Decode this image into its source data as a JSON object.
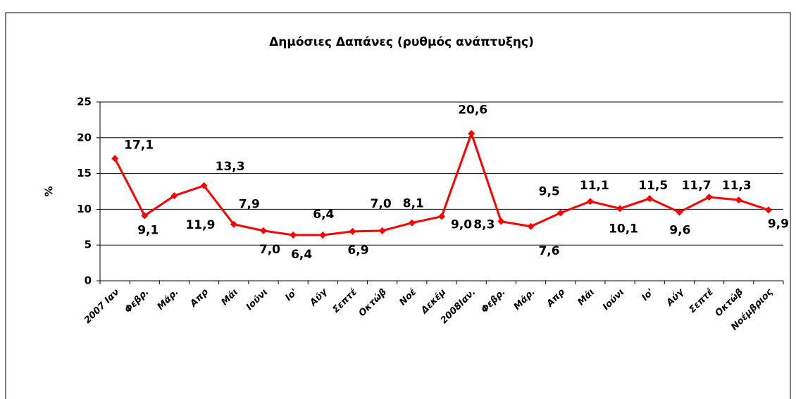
{
  "chart_data": {
    "type": "line",
    "title": "Δημόσιες Δαπάνες (ρυθμός ανάπτυξης)",
    "y_label": "%",
    "categories": [
      "2007 Ιαν",
      "Φεβρ.",
      "Μάρ.",
      "Απρ",
      "Μάι",
      "Ιούνι",
      "Ιο'",
      "Αύγ",
      "Σεπτέ",
      "Οκτώβ",
      "Νοέ",
      "Δεκέμ",
      "2008Ιαν.",
      "Φεβρ.",
      "Μάρ.",
      "Απρ",
      "Μάι",
      "Ιούνι",
      "Ιο'",
      "Αύγ",
      "Σεπτέ",
      "Οκτώβ",
      "Νοέμβριος"
    ],
    "series": [
      {
        "name": "Δημόσιες Δαπάνες",
        "color": "#ff0000",
        "values": [
          17.1,
          9.1,
          11.9,
          13.3,
          7.9,
          7.0,
          6.4,
          6.4,
          6.9,
          7.0,
          8.1,
          9.0,
          20.6,
          8.3,
          7.6,
          9.5,
          11.1,
          10.1,
          11.5,
          9.6,
          11.7,
          11.3,
          9.9
        ],
        "value_labels": [
          "17,1",
          "9,1",
          "11,9",
          "13,3",
          "7,9",
          "7,0",
          "6,4",
          "6,4",
          "6,9",
          "7,0",
          "8,1",
          "9,0",
          "20,6",
          "8,3",
          "7,6",
          "9,5",
          "11,1",
          "10,1",
          "11,5",
          "9,6",
          "11,7",
          "11,3",
          "9,9"
        ]
      }
    ],
    "ylim": [
      0,
      25
    ],
    "yticks": [
      0,
      5,
      10,
      15,
      20,
      25
    ],
    "grid": true
  }
}
